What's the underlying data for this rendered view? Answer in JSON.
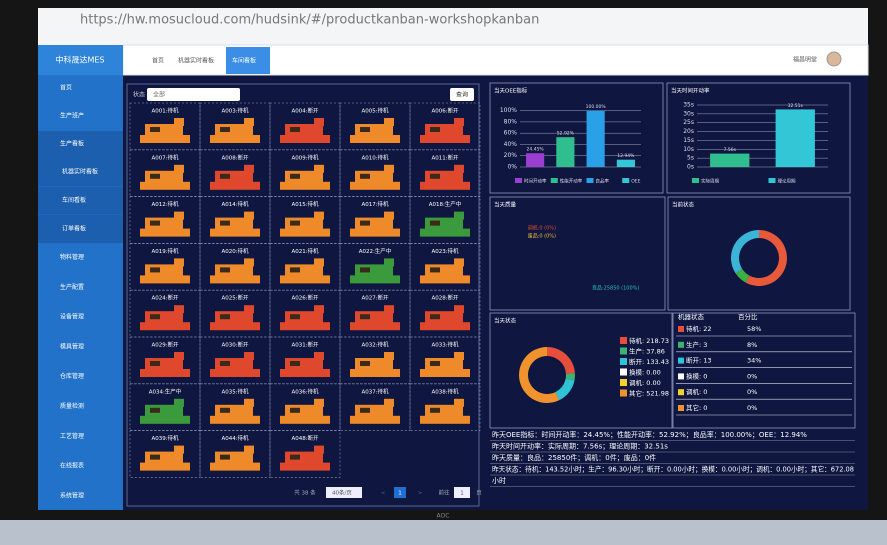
{
  "browser": {
    "url": "https://hw.mosucloud.com/hudsink/#/productkanban-workshopkanban"
  },
  "app": {
    "title": "中科晟达MES",
    "user": "福昌明堂"
  },
  "menu_top": [
    "首页",
    "生产班产",
    "生产看板"
  ],
  "submenu": [
    "机器实时看板",
    "车间看板",
    "订单看板"
  ],
  "menu_rest": [
    "物料管理",
    "生产配置",
    "设备管理",
    "模具管理",
    "仓库管理",
    "质量检测",
    "工艺管理",
    "在线报表",
    "系统管理"
  ],
  "tabs": [
    "首页",
    "机器实时看板",
    "车间看板"
  ],
  "filter": {
    "label": "状态",
    "value": "全部",
    "button": "查询"
  },
  "machines": [
    {
      "label": "A001:待机",
      "color": "#ef8a2a"
    },
    {
      "label": "A003:待机",
      "color": "#ef8a2a"
    },
    {
      "label": "A004:断开",
      "color": "#e0482e"
    },
    {
      "label": "A005:待机",
      "color": "#ef8a2a"
    },
    {
      "label": "A006:断开",
      "color": "#e0482e"
    },
    {
      "label": "A007:待机",
      "color": "#ef8a2a"
    },
    {
      "label": "A008:断开",
      "color": "#e0482e"
    },
    {
      "label": "A009:待机",
      "color": "#ef8a2a"
    },
    {
      "label": "A010:待机",
      "color": "#ef8a2a"
    },
    {
      "label": "A011:断开",
      "color": "#e0482e"
    },
    {
      "label": "A012:待机",
      "color": "#ef8a2a"
    },
    {
      "label": "A014:待机",
      "color": "#ef8a2a"
    },
    {
      "label": "A015:待机",
      "color": "#ef8a2a"
    },
    {
      "label": "A017:待机",
      "color": "#ef8a2a"
    },
    {
      "label": "A018:生产中",
      "color": "#3b9a3c"
    },
    {
      "label": "A019:待机",
      "color": "#ef8a2a"
    },
    {
      "label": "A020:待机",
      "color": "#ef8a2a"
    },
    {
      "label": "A021:待机",
      "color": "#ef8a2a"
    },
    {
      "label": "A022:生产中",
      "color": "#3b9a3c"
    },
    {
      "label": "A023:待机",
      "color": "#ef8a2a"
    },
    {
      "label": "A024:断开",
      "color": "#e0482e"
    },
    {
      "label": "A025:断开",
      "color": "#e0482e"
    },
    {
      "label": "A026:断开",
      "color": "#e0482e"
    },
    {
      "label": "A027:断开",
      "color": "#e0482e"
    },
    {
      "label": "A028:断开",
      "color": "#e0482e"
    },
    {
      "label": "A029:断开",
      "color": "#e0482e"
    },
    {
      "label": "A030:断开",
      "color": "#e0482e"
    },
    {
      "label": "A031:断开",
      "color": "#e0482e"
    },
    {
      "label": "A032:待机",
      "color": "#ef8a2a"
    },
    {
      "label": "A033:待机",
      "color": "#ef8a2a"
    },
    {
      "label": "A034:生产中",
      "color": "#3b9a3c"
    },
    {
      "label": "A035:待机",
      "color": "#ef8a2a"
    },
    {
      "label": "A036:待机",
      "color": "#ef8a2a"
    },
    {
      "label": "A037:待机",
      "color": "#ef8a2a"
    },
    {
      "label": "A038:待机",
      "color": "#ef8a2a"
    },
    {
      "label": "A039:待机",
      "color": "#ef8a2a"
    },
    {
      "label": "A044:待机",
      "color": "#ef8a2a"
    },
    {
      "label": "A048:断开",
      "color": "#e0482e"
    }
  ],
  "pagination": {
    "total": "共 38 条",
    "page_size": "40条/页",
    "prev": "<",
    "page": "1",
    "next": ">",
    "goto": "前往",
    "goto_page": "1",
    "page_unit": "页"
  },
  "chart_data": [
    {
      "type": "bar",
      "title": "当天OEE指标",
      "categories": [
        "时间开动率",
        "性能开动率",
        "良品率",
        "OEE"
      ],
      "values": [
        24.45,
        52.92,
        100,
        12.94
      ],
      "value_labels": [
        "24.45%",
        "52.92%",
        "100.00%",
        "12.94%"
      ],
      "colors": [
        "#9b3fd0",
        "#2fbf8f",
        "#2aa0e8",
        "#33c6d6"
      ],
      "ylim": [
        0,
        110
      ],
      "yticks": [
        {
          "value": 0,
          "label": "0%"
        },
        {
          "value": 20,
          "label": "20%"
        },
        {
          "value": 40,
          "label": "40%"
        },
        {
          "value": 60,
          "label": "60%"
        },
        {
          "value": 80,
          "label": "80%"
        },
        {
          "value": 100,
          "label": "100%"
        }
      ],
      "grid": true
    },
    {
      "type": "bar",
      "title": "当天时间开动率",
      "categories": [
        "实际周期",
        "理论周期"
      ],
      "values": [
        7.56,
        32.51
      ],
      "value_labels": [
        "7.56s",
        "32.51s"
      ],
      "colors": [
        "#2fbf8f",
        "#33c6d6"
      ],
      "ylim": [
        0,
        35
      ],
      "yticks": [
        {
          "value": 0,
          "label": "0s"
        },
        {
          "value": 5,
          "label": "5s"
        },
        {
          "value": 10,
          "label": "10s"
        },
        {
          "value": 15,
          "label": "15s"
        },
        {
          "value": 20,
          "label": "20s"
        },
        {
          "value": 25,
          "label": "25s"
        },
        {
          "value": 30,
          "label": "30s"
        },
        {
          "value": 35,
          "label": "35s"
        }
      ],
      "grid": true
    },
    {
      "type": "pie",
      "title": "当天质量",
      "categories": [
        "良品",
        "调机",
        "废品"
      ],
      "values": [
        25850,
        0,
        0
      ],
      "value_labels": [
        "良品:25850 (100%)",
        "调机:0 (0%)",
        "废品:0 (0%)"
      ],
      "colors": [
        "#30c0b0",
        "#e05030",
        "#f0c030"
      ]
    },
    {
      "type": "pie",
      "title": "当前状态",
      "categories": [
        "待机",
        "生产",
        "断开"
      ],
      "values": [
        22,
        3,
        13
      ],
      "colors": [
        "#e8583a",
        "#3cb043",
        "#3ab5d8"
      ]
    },
    {
      "type": "pie",
      "title": "当天状态",
      "categories": [
        "待机",
        "生产",
        "断开",
        "换模",
        "调机",
        "其它"
      ],
      "values": [
        218.73,
        37.86,
        133.43,
        0,
        0,
        521.98
      ],
      "value_labels": [
        "待机: 218.73",
        "生产: 37.86",
        "断开: 133.43",
        "换模: 0.00",
        "调机: 0.00",
        "其它: 521.98"
      ],
      "colors": [
        "#e84e3c",
        "#3cb371",
        "#2ec4d6",
        "#ffffff",
        "#f5d130",
        "#f0922e"
      ]
    }
  ],
  "status_table": {
    "header": [
      "机器状态",
      "百分比"
    ],
    "rows": [
      [
        "待机: 22",
        "58%"
      ],
      [
        "生产: 3",
        "8%"
      ],
      [
        "断开: 13",
        "34%"
      ],
      [
        "换模: 0",
        "0%"
      ],
      [
        "调机: 0",
        "0%"
      ],
      [
        "其它: 0",
        "0%"
      ]
    ],
    "colors": [
      "#e84e3c",
      "#3cb371",
      "#2ec4d6",
      "#ffffff",
      "#f5d130",
      "#f0922e"
    ]
  },
  "summary": [
    "昨天OEE指标：时间开动率：24.45%；性能开动率：52.92%；良品率：100.00%；OEE：12.94%",
    "昨天时间开动率：实际周期：7.56s；理论周期：32.51s",
    "昨天质量：良品：25850件；调机：0件；废品：0件",
    "昨天状态：待机：143.52小时；生产：96.30小时；断开：0.00小时；换模：0.00小时；调机：0.00小时；其它：672.08",
    "小时"
  ],
  "monitor": {
    "brand": "AOC"
  }
}
